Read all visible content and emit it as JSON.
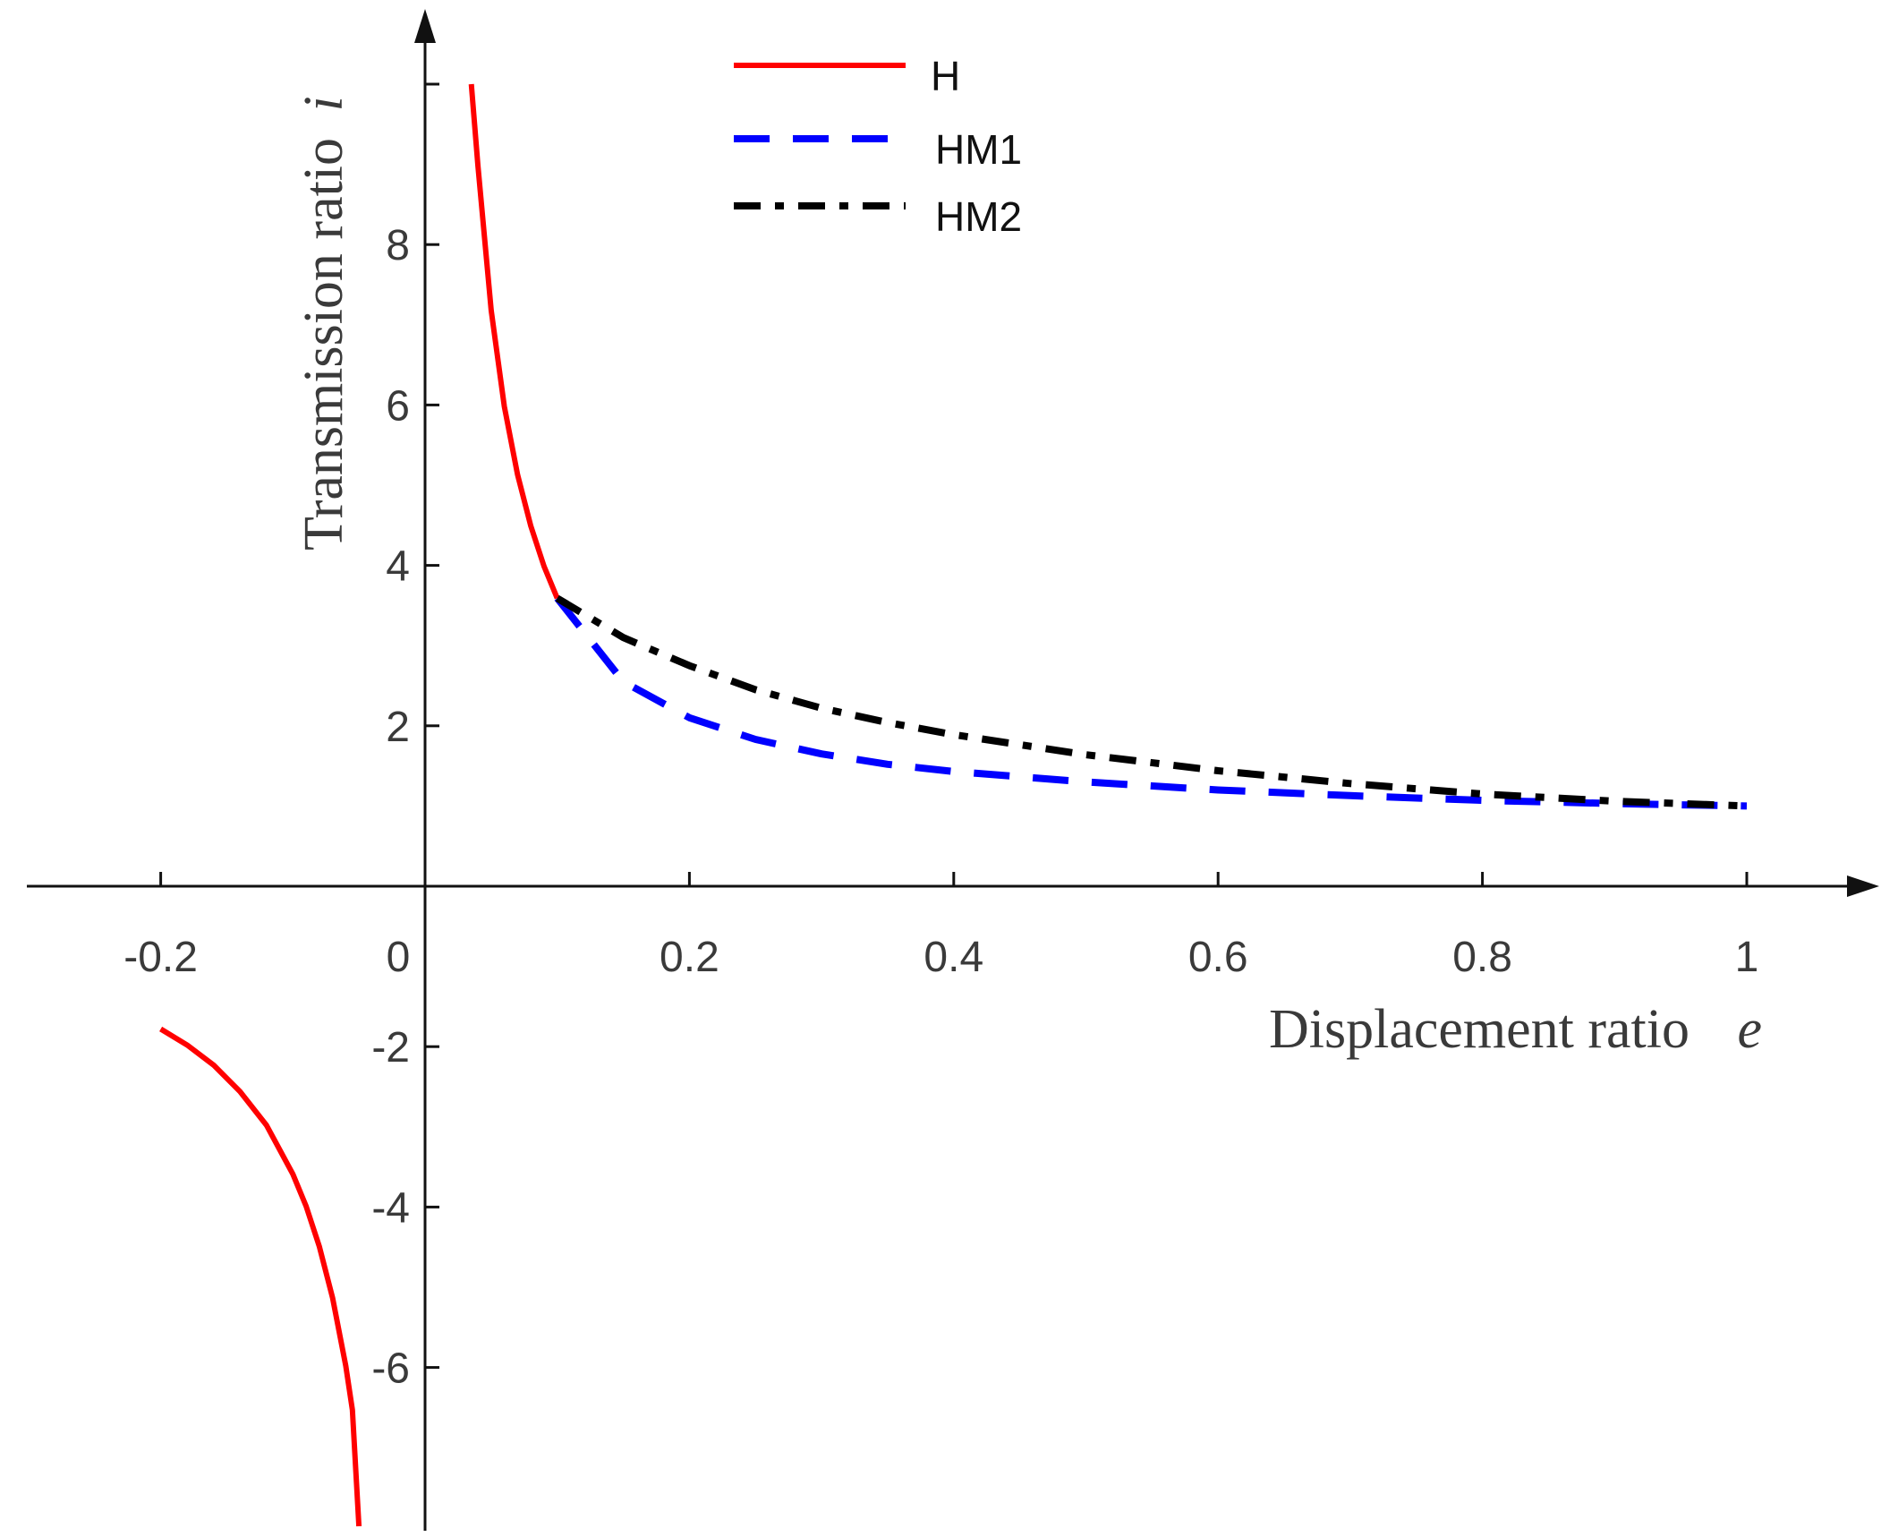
{
  "chart_data": {
    "type": "line",
    "title": "",
    "xlabel": "Displacement ratio",
    "xlabel_var": "e",
    "ylabel": "Transmission ratio",
    "ylabel_var": "i",
    "xlim": [
      -0.32,
      1.1
    ],
    "ylim": [
      -8,
      10
    ],
    "x_ticks": [
      {
        "value": -0.2,
        "label": "-0.2"
      },
      {
        "value": 0,
        "label": "0"
      },
      {
        "value": 0.2,
        "label": "0.2"
      },
      {
        "value": 0.4,
        "label": "0.4"
      },
      {
        "value": 0.6,
        "label": "0.6"
      },
      {
        "value": 0.8,
        "label": "0.8"
      },
      {
        "value": 1,
        "label": "1"
      }
    ],
    "y_ticks": [
      {
        "value": -6,
        "label": "-6"
      },
      {
        "value": -4,
        "label": "-4"
      },
      {
        "value": -2,
        "label": "-2"
      },
      {
        "value": 2,
        "label": "2"
      },
      {
        "value": 4,
        "label": "4"
      },
      {
        "value": 6,
        "label": "6"
      },
      {
        "value": 8,
        "label": "8"
      }
    ],
    "grid": false,
    "legend_position": "top-center",
    "series": [
      {
        "name": "H",
        "color": "#ff0000",
        "style": "solid",
        "segments": [
          {
            "x": [
              0.035,
              0.04,
              0.05,
              0.06,
              0.07,
              0.08,
              0.09,
              0.1
            ],
            "y": [
              10.0,
              8.98,
              7.18,
              5.98,
              5.13,
              4.49,
              3.99,
              3.59
            ]
          },
          {
            "x": [
              -0.2,
              -0.18,
              -0.16,
              -0.14,
              -0.12,
              -0.1,
              -0.09,
              -0.08,
              -0.07,
              -0.06,
              -0.055,
              -0.05
            ],
            "y": [
              -1.78,
              -1.98,
              -2.23,
              -2.56,
              -2.98,
              -3.59,
              -3.99,
              -4.49,
              -5.13,
              -5.98,
              -6.53,
              -7.98
            ]
          }
        ]
      },
      {
        "name": "HM1",
        "color": "#0000ff",
        "style": "dashed",
        "segments": [
          {
            "x": [
              0.1,
              0.15,
              0.2,
              0.25,
              0.3,
              0.35,
              0.4,
              0.5,
              0.6,
              0.7,
              0.8,
              0.9,
              1.0
            ],
            "y": [
              3.59,
              2.55,
              2.1,
              1.83,
              1.65,
              1.52,
              1.43,
              1.3,
              1.2,
              1.13,
              1.07,
              1.03,
              1.0
            ]
          }
        ]
      },
      {
        "name": "HM2",
        "color": "#000000",
        "style": "dashdot",
        "segments": [
          {
            "x": [
              0.1,
              0.15,
              0.2,
              0.25,
              0.3,
              0.35,
              0.4,
              0.5,
              0.6,
              0.7,
              0.8,
              0.9,
              1.0
            ],
            "y": [
              3.59,
              3.1,
              2.75,
              2.45,
              2.22,
              2.04,
              1.89,
              1.64,
              1.44,
              1.28,
              1.15,
              1.06,
              1.0
            ]
          }
        ]
      }
    ]
  }
}
